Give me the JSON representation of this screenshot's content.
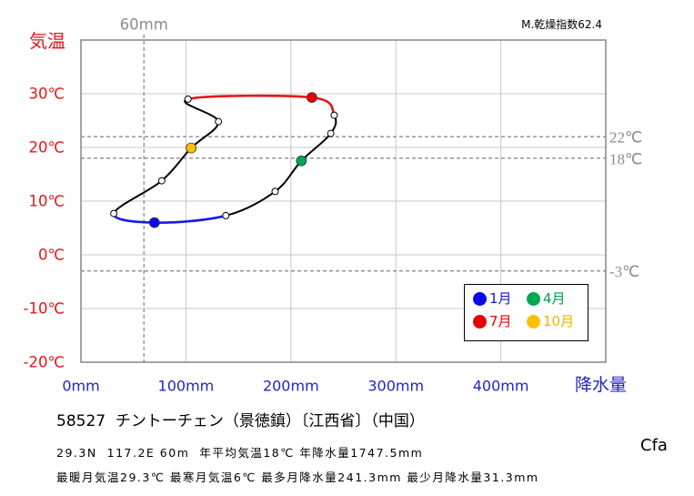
{
  "header": {
    "aridity_index": "M.乾燥指数62.4"
  },
  "colors": {
    "temperature": "#e8141b",
    "precipitation": "#2323c8",
    "reference": "#8c8c8c",
    "grid": "#c8c8c8",
    "frame": "#858585",
    "line": "#000000"
  },
  "chart_data": {
    "type": "line",
    "xlabel": "降水量",
    "ylabel": "気温",
    "xlim": [
      0,
      500
    ],
    "ylim": [
      -20,
      40
    ],
    "xticks": [
      {
        "value": 0,
        "label": "0mm"
      },
      {
        "value": 100,
        "label": "100mm"
      },
      {
        "value": 200,
        "label": "200mm"
      },
      {
        "value": 300,
        "label": "300mm"
      },
      {
        "value": 400,
        "label": "400mm"
      }
    ],
    "yticks": [
      {
        "value": 30,
        "label": "30℃"
      },
      {
        "value": 20,
        "label": "20℃"
      },
      {
        "value": 10,
        "label": "10℃"
      },
      {
        "value": 0,
        "label": "0℃"
      },
      {
        "value": -10,
        "label": "-10℃"
      },
      {
        "value": -20,
        "label": "-20℃"
      }
    ],
    "grid": true,
    "closed_loop": true,
    "months": [
      1,
      2,
      3,
      4,
      5,
      6,
      7,
      8,
      9,
      10,
      11,
      12
    ],
    "x": [
      70,
      138,
      185,
      210,
      238,
      241.3,
      220,
      102,
      131,
      105,
      77,
      31.3
    ],
    "y": [
      6.0,
      7.3,
      11.8,
      17.5,
      22.6,
      26.0,
      29.3,
      29.0,
      24.8,
      19.9,
      13.8,
      7.7
    ],
    "segment_colors": [
      {
        "months": [
          12,
          1,
          2
        ],
        "color": "#1a1ae6"
      },
      {
        "months": [
          6,
          7,
          8
        ],
        "color": "#e8141b"
      }
    ],
    "highlights": [
      {
        "month": 1,
        "label": "1月",
        "color": "#0a0af0",
        "text_color": "#1414e6"
      },
      {
        "month": 4,
        "label": "4月",
        "color": "#00a651",
        "text_color": "#00a050"
      },
      {
        "month": 7,
        "label": "7月",
        "color": "#e60000",
        "text_color": "#e60000"
      },
      {
        "month": 10,
        "label": "10月",
        "color": "#ffc000",
        "text_color": "#f0b000"
      }
    ],
    "reference_lines": {
      "y": [
        {
          "value": 22,
          "label": "22℃"
        },
        {
          "value": 18,
          "label": "18℃"
        },
        {
          "value": -3,
          "label": "-3℃"
        }
      ],
      "x": [
        {
          "value": 60,
          "label": "60mm"
        }
      ]
    },
    "legend_position": "bottom-right"
  },
  "station": {
    "title": "58527  チントーチェン（景徳鎮）〔江西省〕（中国）",
    "climate_class": "Cfa",
    "info_line_1": "29.3N  117.2E 60m  年平均気温18℃ 年降水量1747.5mm",
    "info_line_2": "最暖月気温29.3℃ 最寒月気温6℃ 最多月降水量241.3mm 最少月降水量31.3mm"
  }
}
